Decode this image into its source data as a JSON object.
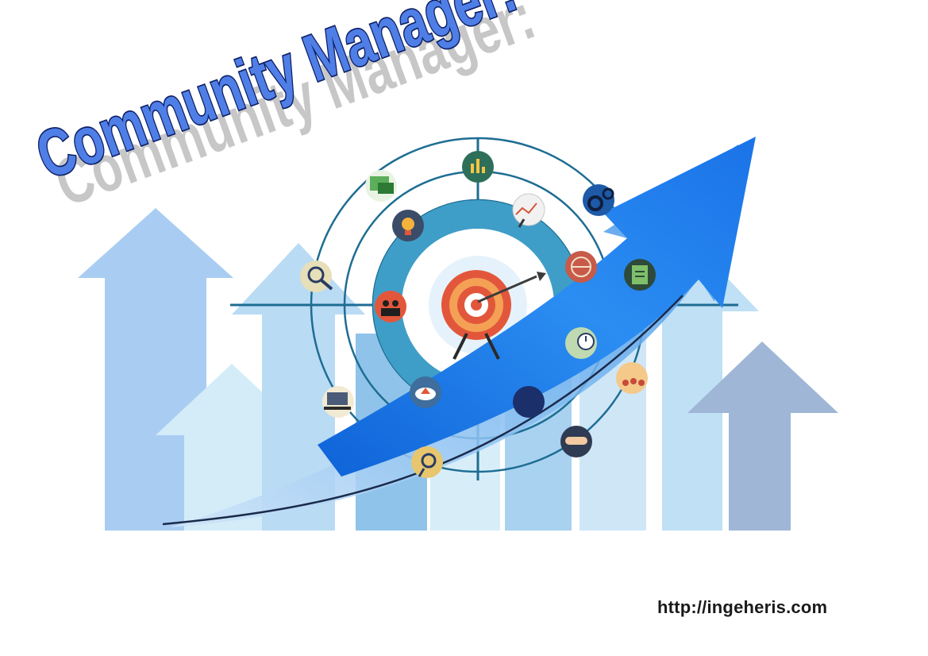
{
  "headline": "Community Manager:",
  "website": "http://ingeheris.com",
  "colors": {
    "headline_fill": "#4f7fe6",
    "headline_stroke": "#0d1f66",
    "headline_shadow": "#c7c7c7",
    "arrow_blue": "#1e7ff0",
    "arrow_light": "#a9cdf2",
    "arrow_pale": "#cfe6f7",
    "arrow_slate": "#9fb6d6",
    "ring_teal": "#3f9ec8",
    "ring_line": "#1e6d93",
    "target_red": "#e2573b",
    "target_orange": "#f4a155"
  },
  "icons": [
    "money-chart-icon",
    "money-bills-icon",
    "lightbulb-idea-icon",
    "chart-magnifier-icon",
    "gears-icon",
    "magnifier-eye-icon",
    "global-network-icon",
    "checklist-icon",
    "business-team-icon",
    "clock-time-icon",
    "team-chat-icon",
    "laptop-icon",
    "cloud-upload-icon",
    "chat-bubble-icon",
    "handshake-icon",
    "search-person-icon"
  ]
}
